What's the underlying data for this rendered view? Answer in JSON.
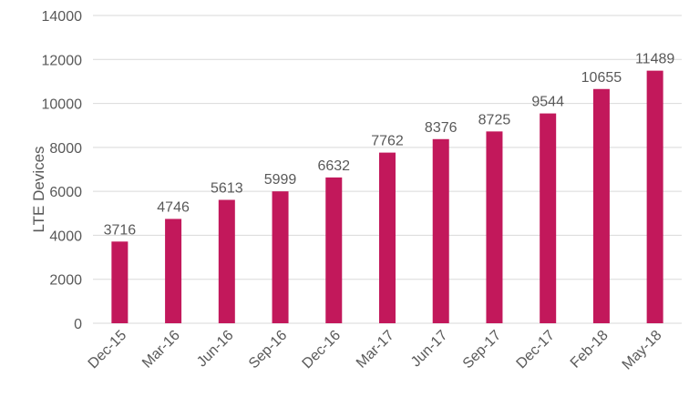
{
  "chart_data": {
    "type": "bar",
    "categories": [
      "Dec-15",
      "Mar-16",
      "Jun-16",
      "Sep-16",
      "Dec-16",
      "Mar-17",
      "Jun-17",
      "Sep-17",
      "Dec-17",
      "Feb-18",
      "May-18"
    ],
    "values": [
      3716,
      4746,
      5613,
      5999,
      6632,
      7762,
      8376,
      8725,
      9544,
      10655,
      11489
    ],
    "title": "",
    "xlabel": "",
    "ylabel": "LTE Devices",
    "ylim": [
      0,
      14000
    ],
    "yticks": [
      0,
      2000,
      4000,
      6000,
      8000,
      10000,
      12000,
      14000
    ],
    "grid": true,
    "legend": "none",
    "bar_color": "#c2185b"
  }
}
